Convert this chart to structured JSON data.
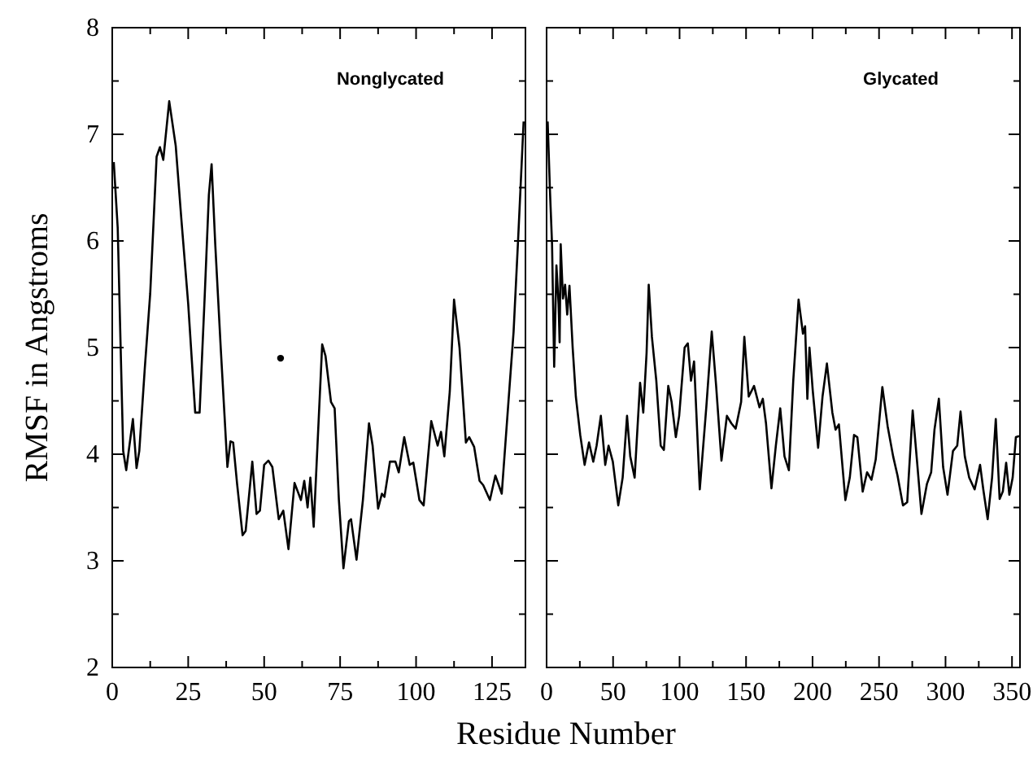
{
  "chart_data": [
    {
      "type": "line",
      "xlabel": "Residue Number",
      "ylabel": "RMSF in Angstroms",
      "annotations": [
        "Nonglycated"
      ],
      "xlim": [
        0,
        136
      ],
      "ylim": [
        2,
        8
      ],
      "xticks": [
        0,
        {
          "value": 12.5,
          "label": null
        },
        25,
        {
          "value": 37.5,
          "label": null
        },
        50,
        {
          "value": 62.5,
          "label": null
        },
        75,
        {
          "value": 87.5,
          "label": null
        },
        100,
        {
          "value": 112.5,
          "label": null
        },
        125
      ],
      "yticks": [
        2,
        {
          "value": 2.5,
          "label": null
        },
        3,
        {
          "value": 3.5,
          "label": null
        },
        4,
        {
          "value": 4.5,
          "label": null
        },
        5,
        {
          "value": 5.5,
          "label": null
        },
        6,
        {
          "value": 6.5,
          "label": null
        },
        7,
        {
          "value": 7.5,
          "label": null
        },
        8
      ],
      "grid": false,
      "marker": "none",
      "line_style": "solid",
      "series": [
        {
          "type": "line",
          "color": "#000000",
          "x": [
            0.5,
            1.8,
            3.6,
            4.6,
            6.8,
            8,
            8.9,
            10.7,
            12.5,
            14.6,
            15.7,
            16.8,
            18.75,
            20.9,
            22.7,
            25,
            27.3,
            28.75,
            30.4,
            31.8,
            32.7,
            33.9,
            35.7,
            37.9,
            38.9,
            39.8,
            41.1,
            42.9,
            43.9,
            46.1,
            47.5,
            48.6,
            50,
            51.4,
            52.7,
            54.8,
            56.3,
            58,
            60,
            62.1,
            63.2,
            64.3,
            65.2,
            66.3,
            69.1,
            70.2,
            72,
            73.2,
            74.6,
            76.1,
            77.9,
            78.6,
            80.4,
            82.5,
            84.5,
            85.7,
            87.5,
            88.75,
            89.6,
            91.4,
            93.2,
            94.3,
            96.1,
            97.9,
            99.1,
            101.1,
            102.5,
            105,
            107.1,
            108.2,
            109.3,
            111.1,
            112.5,
            114.3,
            116.4,
            117.5,
            119.1,
            120.9,
            122.1,
            124.3,
            126.1,
            128.2,
            130.4,
            132.1,
            133.6,
            135.4
          ],
          "values": [
            6.74,
            6.12,
            4.03,
            3.85,
            4.33,
            3.87,
            4.03,
            4.8,
            5.51,
            6.79,
            6.88,
            6.76,
            7.31,
            6.89,
            6.22,
            5.41,
            4.39,
            4.39,
            5.46,
            6.43,
            6.72,
            5.97,
            5.0,
            3.88,
            4.12,
            4.11,
            3.72,
            3.24,
            3.28,
            3.93,
            3.44,
            3.47,
            3.9,
            3.94,
            3.88,
            3.39,
            3.47,
            3.11,
            3.73,
            3.57,
            3.75,
            3.5,
            3.78,
            3.32,
            5.03,
            4.92,
            4.49,
            4.43,
            3.57,
            2.93,
            3.37,
            3.39,
            3.01,
            3.57,
            4.29,
            4.08,
            3.49,
            3.63,
            3.6,
            3.93,
            3.93,
            3.83,
            4.16,
            3.9,
            3.92,
            3.57,
            3.52,
            4.31,
            4.08,
            4.21,
            3.98,
            4.59,
            5.45,
            5.0,
            4.11,
            4.16,
            4.07,
            3.75,
            3.71,
            3.57,
            3.8,
            3.63,
            4.49,
            5.15,
            6.02,
            7.12
          ]
        },
        {
          "type": "scatter",
          "color": "#000000",
          "marker": "circle",
          "x": [
            55.4
          ],
          "values": [
            4.9
          ]
        }
      ]
    },
    {
      "type": "line",
      "annotations": [
        "Glycated"
      ],
      "xlim": [
        0,
        356
      ],
      "ylim": [
        2,
        8
      ],
      "tick_labels": "x",
      "xticks": [
        0,
        {
          "value": 25,
          "label": null
        },
        50,
        {
          "value": 75,
          "label": null
        },
        100,
        {
          "value": 125,
          "label": null
        },
        150,
        {
          "value": 175,
          "label": null
        },
        200,
        {
          "value": 225,
          "label": null
        },
        250,
        {
          "value": 275,
          "label": null
        },
        300,
        {
          "value": 325,
          "label": null
        },
        350
      ],
      "yticks": [
        2,
        {
          "value": 2.5,
          "label": null
        },
        3,
        {
          "value": 3.5,
          "label": null
        },
        4,
        {
          "value": 4.5,
          "label": null
        },
        5,
        {
          "value": 5.5,
          "label": null
        },
        6,
        {
          "value": 6.5,
          "label": null
        },
        7,
        {
          "value": 7.5,
          "label": null
        },
        8
      ],
      "grid": false,
      "marker": "none",
      "line_style": "solid",
      "series": [
        {
          "type": "line",
          "color": "#000000",
          "x": [
            0.8,
            2.5,
            4.1,
            5.7,
            7.4,
            9,
            9.8,
            10.6,
            12.3,
            13.9,
            15.5,
            17.2,
            19.6,
            22,
            25.3,
            28.6,
            31.9,
            35.1,
            37.6,
            40.8,
            44.1,
            46.6,
            49.8,
            53.9,
            57.2,
            60.5,
            62.9,
            66.2,
            70.3,
            72.7,
            75.2,
            76.8,
            79.2,
            82.5,
            85.8,
            88.2,
            91.5,
            94,
            97.2,
            99.7,
            103.8,
            106.2,
            108.6,
            110.9,
            115.2,
            120.1,
            124.2,
            127.5,
            131.5,
            135.6,
            138.9,
            142.2,
            146.3,
            148.7,
            152,
            156,
            160.1,
            162.6,
            165,
            169.1,
            172.4,
            175.7,
            178.9,
            182.2,
            185.5,
            189.5,
            192.8,
            194.4,
            196.1,
            197.7,
            200.2,
            204.2,
            207.5,
            210.8,
            214.9,
            217.3,
            219.8,
            224.7,
            228,
            231.2,
            233.7,
            237.7,
            241,
            244.3,
            247.5,
            252.5,
            256.5,
            260.6,
            263.9,
            268,
            271.2,
            275.3,
            278.6,
            281.9,
            286,
            289.2,
            291.7,
            295,
            298.2,
            301.5,
            305.6,
            308.8,
            311.3,
            314.5,
            317.8,
            321.9,
            326,
            328.4,
            331.7,
            335,
            337.8,
            340.7,
            343.1,
            345.6,
            348,
            350.5,
            352.9,
            355.4
          ],
          "values": [
            7.12,
            6.48,
            5.97,
            4.82,
            5.77,
            5.41,
            5.05,
            5.97,
            5.46,
            5.59,
            5.31,
            5.58,
            5.0,
            4.54,
            4.18,
            3.9,
            4.11,
            3.93,
            4.08,
            4.36,
            3.9,
            4.08,
            3.93,
            3.52,
            3.78,
            4.36,
            3.98,
            3.78,
            4.67,
            4.39,
            4.95,
            5.59,
            5.1,
            4.69,
            4.08,
            4.04,
            4.64,
            4.49,
            4.16,
            4.36,
            5.0,
            5.04,
            4.69,
            4.87,
            3.67,
            4.44,
            5.15,
            4.64,
            3.94,
            4.36,
            4.29,
            4.24,
            4.49,
            5.1,
            4.54,
            4.64,
            4.44,
            4.52,
            4.29,
            3.68,
            4.08,
            4.43,
            3.98,
            3.85,
            4.69,
            5.45,
            5.13,
            5.2,
            4.52,
            5.0,
            4.59,
            4.06,
            4.54,
            4.85,
            4.39,
            4.23,
            4.28,
            3.57,
            3.78,
            4.18,
            4.16,
            3.65,
            3.83,
            3.76,
            3.95,
            4.63,
            4.26,
            3.98,
            3.8,
            3.52,
            3.55,
            4.41,
            3.93,
            3.44,
            3.72,
            3.83,
            4.23,
            4.52,
            3.88,
            3.62,
            4.03,
            4.08,
            4.4,
            3.98,
            3.78,
            3.67,
            3.9,
            3.67,
            3.39,
            3.78,
            4.33,
            3.58,
            3.65,
            3.92,
            3.62,
            3.78,
            4.16,
            4.17
          ]
        }
      ]
    }
  ]
}
